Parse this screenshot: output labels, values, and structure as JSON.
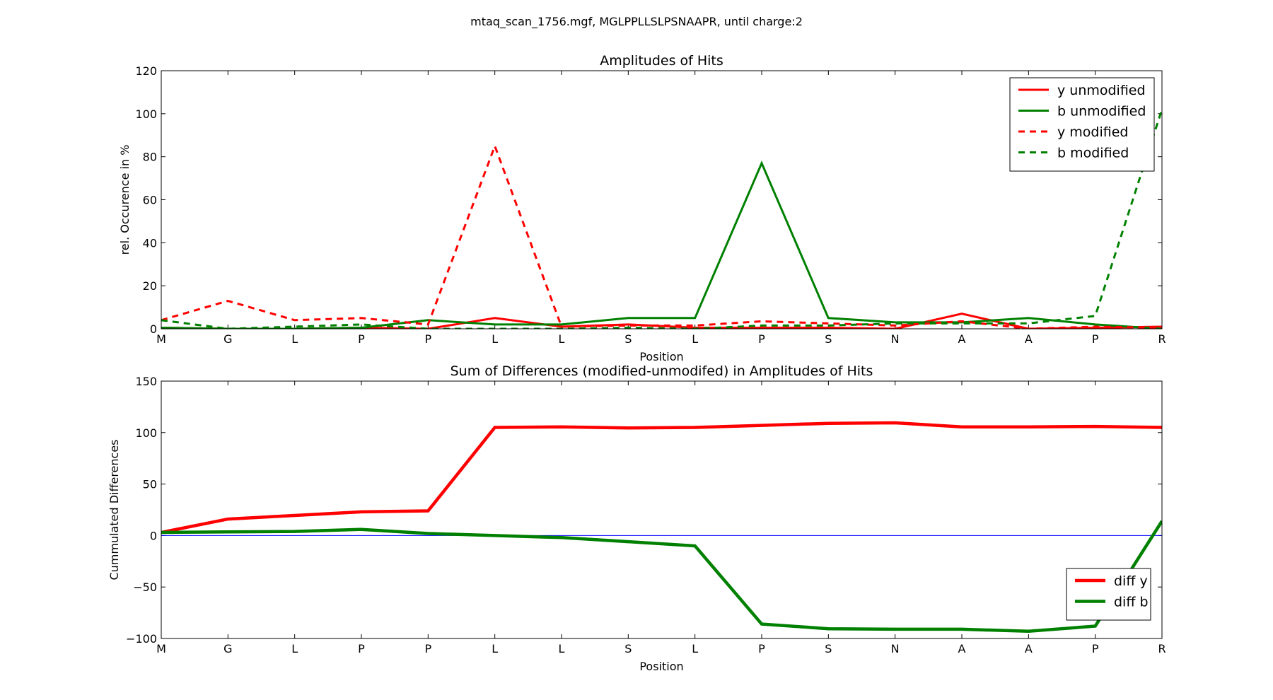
{
  "suptitle": "mtaq_scan_1756.mgf, MGLPPLLSLPSNAAPR, until charge:2",
  "chart_data": [
    {
      "type": "line",
      "title": "Amplitudes of Hits",
      "xlabel": "Position",
      "ylabel": "rel. Occurence in %",
      "categories": [
        "M",
        "G",
        "L",
        "P",
        "P",
        "L",
        "L",
        "S",
        "L",
        "P",
        "S",
        "N",
        "A",
        "A",
        "P",
        "R"
      ],
      "ylim": [
        0,
        120
      ],
      "yticks": [
        0,
        20,
        40,
        60,
        80,
        100,
        120
      ],
      "grid": false,
      "legend_position": "top-right",
      "series": [
        {
          "name": "y unmodified",
          "color": "#ff0000",
          "style": "solid",
          "values": [
            0.5,
            0,
            0,
            0.5,
            0,
            5,
            1,
            2,
            0.5,
            0.5,
            0.5,
            0,
            7,
            0,
            0.5,
            1
          ]
        },
        {
          "name": "b unmodified",
          "color": "#008000",
          "style": "solid",
          "values": [
            0.5,
            0,
            0,
            0.5,
            4,
            2,
            2,
            5,
            5,
            77,
            5,
            3,
            3,
            5,
            2,
            0
          ]
        },
        {
          "name": "y modified",
          "color": "#ff0000",
          "style": "dashed",
          "values": [
            4,
            13,
            4,
            5,
            2,
            85,
            1,
            1.5,
            1.5,
            3.5,
            2.5,
            1.5,
            3.5,
            0,
            1,
            0.5
          ]
        },
        {
          "name": "b modified",
          "color": "#008000",
          "style": "dashed",
          "values": [
            4,
            0,
            1,
            2,
            0,
            0,
            0,
            0.5,
            0,
            1.5,
            1.5,
            2.5,
            2.5,
            2.5,
            6,
            102
          ]
        }
      ]
    },
    {
      "type": "line",
      "title": "Sum of Differences (modified-unmodifed) in Amplitudes of Hits",
      "xlabel": "Position",
      "ylabel": "Cummulated Differences",
      "categories": [
        "M",
        "G",
        "L",
        "P",
        "P",
        "L",
        "L",
        "S",
        "L",
        "P",
        "S",
        "N",
        "A",
        "A",
        "P",
        "R"
      ],
      "ylim": [
        -100,
        150
      ],
      "yticks": [
        -100,
        -50,
        0,
        50,
        100,
        150
      ],
      "grid": false,
      "legend_position": "lower-right",
      "reference_line": {
        "y": 0,
        "color": "#0000ff"
      },
      "series": [
        {
          "name": "diff y",
          "color": "#ff0000",
          "values": [
            3,
            16,
            19.5,
            23,
            24,
            105,
            105.5,
            104.5,
            105,
            107,
            109,
            109.5,
            105.5,
            105.5,
            106,
            105
          ]
        },
        {
          "name": "diff b",
          "color": "#008000",
          "values": [
            3,
            3.5,
            4,
            6,
            2,
            0,
            -2,
            -6,
            -10,
            -86,
            -90.5,
            -91,
            -91,
            -93,
            -88,
            14
          ]
        }
      ]
    }
  ]
}
